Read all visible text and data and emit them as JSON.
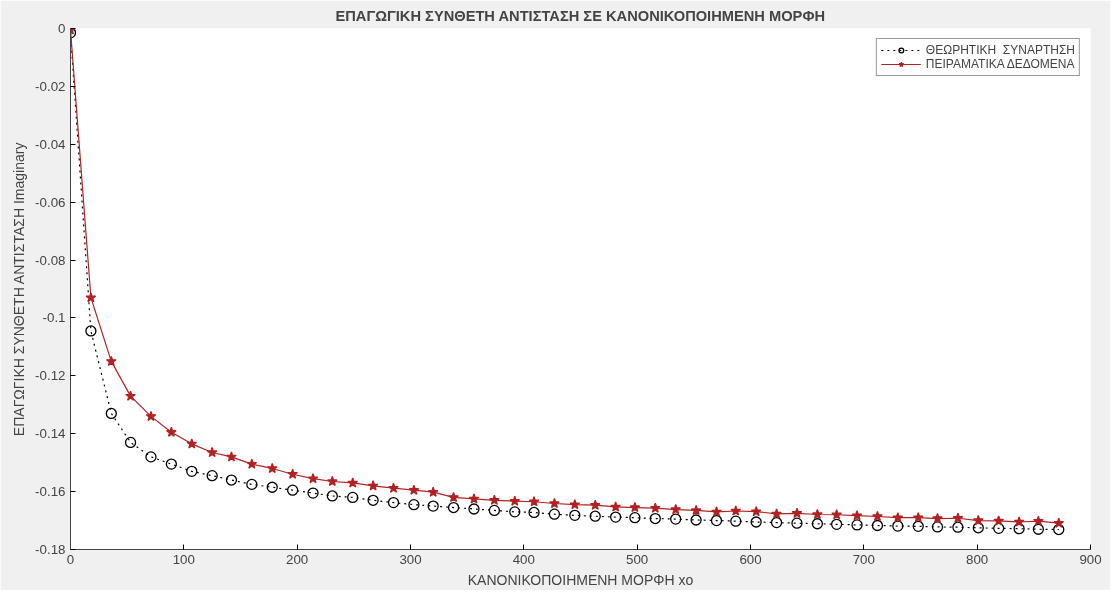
{
  "chart_data": {
    "type": "line",
    "title": "ΕΠΑΓΩΓΙΚΗ ΣΥΝΘΕΤΗ ΑΝΤΙΣΤΑΣΗ ΣΕ ΚΑΝΟΝΙΚΟΠΟΙΗΜΕΝΗ ΜΟΡΦΗ",
    "xlabel": "ΚΑΝΟΝΙΚΟΠΟΙΗΜΕΝΗ ΜΟΡΦΗ xo",
    "ylabel": "ΕΠΑΓΩΓΙΚΗ ΣΥΝΘΕΤΗ ΑΝΤΙΣΤΑΣΗ Imaginary",
    "x": [
      0,
      18,
      36,
      53,
      71,
      89,
      107,
      125,
      142,
      160,
      178,
      196,
      214,
      231,
      249,
      267,
      285,
      303,
      320,
      338,
      356,
      374,
      392,
      409,
      427,
      445,
      463,
      481,
      498,
      516,
      534,
      552,
      570,
      587,
      605,
      623,
      641,
      659,
      676,
      694,
      712,
      730,
      748,
      765,
      783,
      801,
      819,
      837,
      854,
      872
    ],
    "series": [
      {
        "name": "ΘΕΩΡΗΤΙΚΗ  ΣΥΝΑΡΤΗΣΗ",
        "color": "#000000",
        "marker": "circle",
        "line_style": "dotted",
        "values": [
          -0.0015,
          -0.1045,
          -0.133,
          -0.143,
          -0.148,
          -0.1505,
          -0.153,
          -0.1545,
          -0.156,
          -0.1575,
          -0.1585,
          -0.1595,
          -0.1605,
          -0.1615,
          -0.162,
          -0.163,
          -0.1638,
          -0.1645,
          -0.165,
          -0.1655,
          -0.166,
          -0.1665,
          -0.167,
          -0.1672,
          -0.1678,
          -0.1682,
          -0.1685,
          -0.1688,
          -0.169,
          -0.1693,
          -0.1695,
          -0.1698,
          -0.17,
          -0.1702,
          -0.1705,
          -0.1707,
          -0.1709,
          -0.1711,
          -0.1713,
          -0.1715,
          -0.1717,
          -0.1719,
          -0.172,
          -0.1722,
          -0.1723,
          -0.1725,
          -0.1727,
          -0.1728,
          -0.173,
          -0.1731
        ]
      },
      {
        "name": "ΠΕΙΡΑΜΑΤΙΚΑ ΔΕΔΟΜΕΝΑ",
        "color": "#b22222",
        "marker": "star",
        "line_style": "solid",
        "values": [
          -0.0005,
          -0.093,
          -0.115,
          -0.127,
          -0.134,
          -0.1395,
          -0.1435,
          -0.1465,
          -0.148,
          -0.1505,
          -0.152,
          -0.154,
          -0.1555,
          -0.1565,
          -0.157,
          -0.158,
          -0.1588,
          -0.1595,
          -0.1602,
          -0.162,
          -0.1625,
          -0.163,
          -0.1633,
          -0.1635,
          -0.1641,
          -0.1645,
          -0.1647,
          -0.1653,
          -0.1655,
          -0.1657,
          -0.1662,
          -0.1665,
          -0.167,
          -0.1667,
          -0.1669,
          -0.1677,
          -0.1675,
          -0.1679,
          -0.168,
          -0.1683,
          -0.1686,
          -0.169,
          -0.169,
          -0.1693,
          -0.1692,
          -0.17,
          -0.1701,
          -0.1705,
          -0.1702,
          -0.1709
        ]
      }
    ],
    "xlim": [
      0,
      900
    ],
    "xticks": [
      0,
      100,
      200,
      300,
      400,
      500,
      600,
      700,
      800,
      900
    ],
    "ylim": [
      -0.18,
      0
    ],
    "yticks": [
      -0.18,
      -0.16,
      -0.14,
      -0.12,
      -0.1,
      -0.08,
      -0.06,
      -0.04,
      -0.02,
      0
    ],
    "grid": false,
    "legend": "top right"
  }
}
